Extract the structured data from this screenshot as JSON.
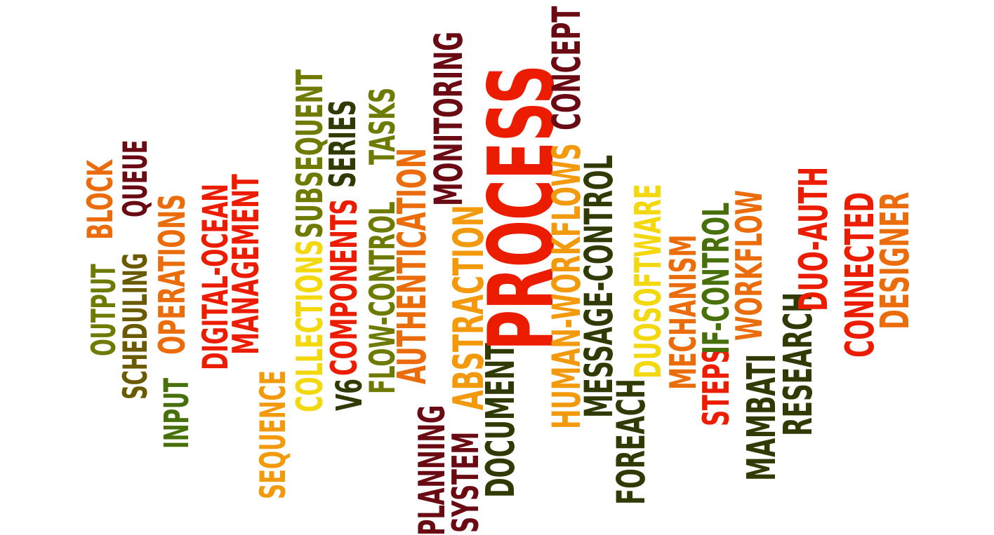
{
  "palette": {
    "red": "#ec1c00",
    "orange": "#ea6c0a",
    "amber": "#f29a0c",
    "yellow": "#f2d80c",
    "olive": "#6f7a00",
    "green": "#47700a",
    "dark_green": "#2f3a05",
    "maroon": "#6a0a12"
  },
  "words": [
    {
      "text": "OUTPUT",
      "color": "#6f7a00"
    },
    {
      "text": "BLOCK",
      "color": "#ea6c0a"
    },
    {
      "text": "SCHEDULING",
      "color": "#6a5a00"
    },
    {
      "text": "QUEUE",
      "color": "#6a0a12"
    },
    {
      "text": "INPUT",
      "color": "#47700a"
    },
    {
      "text": "OPERATIONS",
      "color": "#ea6c0a"
    },
    {
      "text": "DIGITAL-OCEAN",
      "color": "#ec1c00"
    },
    {
      "text": "MANAGEMENT",
      "color": "#ec1c00"
    },
    {
      "text": "SEQUENCE",
      "color": "#f29a0c"
    },
    {
      "text": "COLLECTIONS",
      "color": "#f2d80c"
    },
    {
      "text": "SUBSEQUENT",
      "color": "#6f7a00"
    },
    {
      "text": "V6",
      "color": "#2f3a05"
    },
    {
      "text": "COMPONENTS",
      "color": "#ec1c00"
    },
    {
      "text": "SERIES",
      "color": "#2f3a05"
    },
    {
      "text": "FLOW-CONTROL",
      "color": "#6f7a00"
    },
    {
      "text": "TASKS",
      "color": "#6f7a00"
    },
    {
      "text": "AUTHENTICATION",
      "color": "#ea6c0a"
    },
    {
      "text": "PLANNING",
      "color": "#6a0a12"
    },
    {
      "text": "MONITORING",
      "color": "#6a0a12"
    },
    {
      "text": "SYSTEM",
      "color": "#6a0a12"
    },
    {
      "text": "ABSTRACTION",
      "color": "#f29a0c"
    },
    {
      "text": "DOCUMENT",
      "color": "#2f3a05"
    },
    {
      "text": "PROCESS",
      "color": "#ec1c00"
    },
    {
      "text": "HUMAN-WORKFLOWS",
      "color": "#f29a0c"
    },
    {
      "text": "CONCEPT",
      "color": "#6a0a12"
    },
    {
      "text": "MESSAGE-CONTROL",
      "color": "#2f3a05"
    },
    {
      "text": "FOREACH",
      "color": "#2f3a05"
    },
    {
      "text": "DUOSOFTWARE",
      "color": "#f2d80c"
    },
    {
      "text": "MECHANISM",
      "color": "#ea6c0a"
    },
    {
      "text": "STEPS",
      "color": "#ec1c00"
    },
    {
      "text": "IF-CONTROL",
      "color": "#47700a"
    },
    {
      "text": "WORKFLOW",
      "color": "#ea6c0a"
    },
    {
      "text": "MAMBATI",
      "color": "#2f3a05"
    },
    {
      "text": "RESEARCH",
      "color": "#2f3a05"
    },
    {
      "text": "DUO-AUTH",
      "color": "#ec1c00"
    },
    {
      "text": "CONNECTED",
      "color": "#ec1c00"
    },
    {
      "text": "DESIGNER",
      "color": "#ea6c0a"
    }
  ]
}
